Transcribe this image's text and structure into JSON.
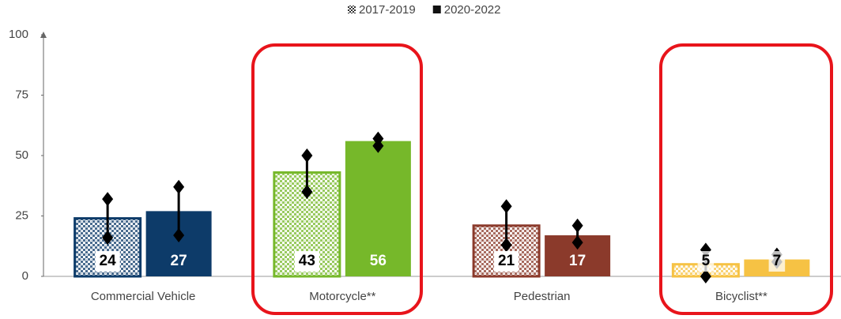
{
  "chart_data": {
    "type": "bar",
    "categories": [
      "Commercial Vehicle",
      "Motorcycle**",
      "Pedestrian",
      "Bicyclist**"
    ],
    "colors": [
      "#0d3b69",
      "#76b82a",
      "#8b3a2b",
      "#f6c244"
    ],
    "series": [
      {
        "name": "2017-2019",
        "pattern": "checkered",
        "values": [
          24,
          43,
          21,
          5
        ],
        "lower": [
          16,
          35,
          13,
          0
        ],
        "upper": [
          32,
          50,
          29,
          11
        ]
      },
      {
        "name": "2020-2022",
        "pattern": "solid",
        "values": [
          27,
          56,
          17,
          7
        ],
        "lower": [
          17,
          54,
          14,
          6
        ],
        "upper": [
          37,
          57,
          21,
          9
        ]
      }
    ],
    "ylim": [
      0,
      100
    ],
    "yticks": [
      0,
      25,
      50,
      75,
      100
    ],
    "legend": "top"
  }
}
